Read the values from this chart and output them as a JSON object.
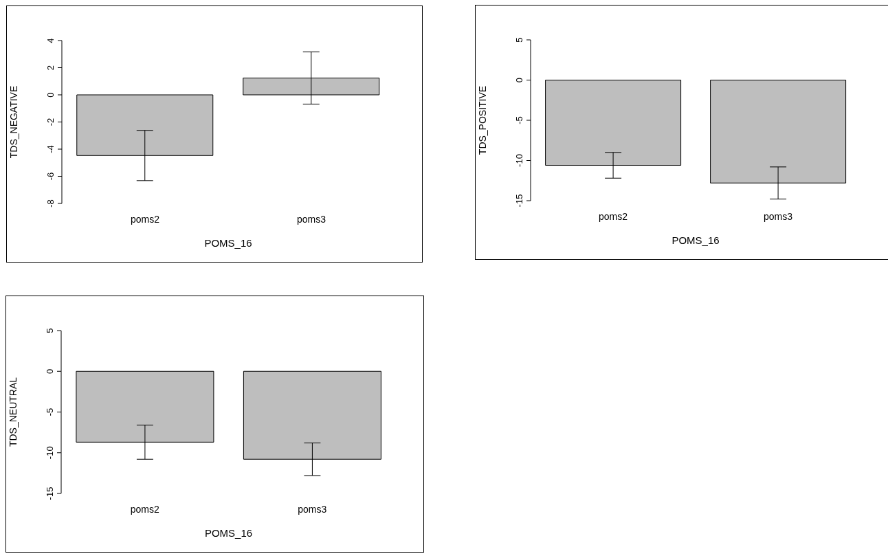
{
  "chart_data": [
    {
      "type": "bar",
      "categories": [
        "poms2",
        "poms3"
      ],
      "values": [
        -4.47,
        1.24
      ],
      "errors": [
        1.85,
        1.92
      ],
      "color": "#bebebe",
      "xlabel": "POMS_16",
      "ylabel": "TDS_NEGATIVE",
      "ylim": [
        -8,
        4
      ],
      "yticks": [
        -8,
        -6,
        -4,
        -2,
        0,
        2,
        4
      ]
    },
    {
      "type": "bar",
      "categories": [
        "poms2",
        "poms3"
      ],
      "values": [
        -10.6,
        -12.8
      ],
      "errors": [
        1.6,
        2.0
      ],
      "color": "#bebebe",
      "xlabel": "POMS_16",
      "ylabel": "TDS_POSITIVE",
      "ylim": [
        -15,
        5
      ],
      "yticks": [
        -15,
        -10,
        -5,
        0,
        5
      ]
    },
    {
      "type": "bar",
      "categories": [
        "poms2",
        "poms3"
      ],
      "values": [
        -8.7,
        -10.8
      ],
      "errors": [
        2.1,
        2.0
      ],
      "color": "#bebebe",
      "xlabel": "POMS_16",
      "ylabel": "TDS_NEUTRAL",
      "ylim": [
        -15,
        5
      ],
      "yticks": [
        -15,
        -10,
        -5,
        0,
        5
      ]
    }
  ]
}
